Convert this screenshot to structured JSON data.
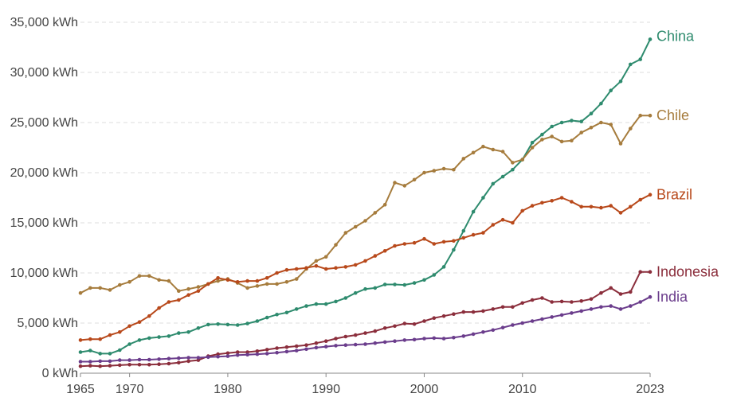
{
  "chart_data": {
    "type": "line",
    "title": "",
    "xlabel": "",
    "ylabel": "",
    "xlim": [
      1965,
      2023
    ],
    "ylim": [
      0,
      35000
    ],
    "grid": true,
    "y_ticks": [
      0,
      5000,
      10000,
      15000,
      20000,
      25000,
      30000,
      35000
    ],
    "y_tick_labels": [
      "0 kWh",
      "5,000 kWh",
      "10,000 kWh",
      "15,000 kWh",
      "20,000 kWh",
      "25,000 kWh",
      "30,000 kWh",
      "35,000 kWh"
    ],
    "x_ticks": [
      1965,
      1970,
      1980,
      1990,
      2000,
      2010,
      2023
    ],
    "x_tick_labels": [
      "1965",
      "1970",
      "1980",
      "1990",
      "2000",
      "2010",
      "2023"
    ],
    "x": [
      1965,
      1966,
      1967,
      1968,
      1969,
      1970,
      1971,
      1972,
      1973,
      1974,
      1975,
      1976,
      1977,
      1978,
      1979,
      1980,
      1981,
      1982,
      1983,
      1984,
      1985,
      1986,
      1987,
      1988,
      1989,
      1990,
      1991,
      1992,
      1993,
      1994,
      1995,
      1996,
      1997,
      1998,
      1999,
      2000,
      2001,
      2002,
      2003,
      2004,
      2005,
      2006,
      2007,
      2008,
      2009,
      2010,
      2011,
      2012,
      2013,
      2014,
      2015,
      2016,
      2017,
      2018,
      2019,
      2020,
      2021,
      2022,
      2023
    ],
    "series": [
      {
        "name": "China",
        "color": "#2e8b6e",
        "values": [
          2100,
          2250,
          1950,
          1950,
          2300,
          2900,
          3300,
          3500,
          3600,
          3700,
          4000,
          4100,
          4500,
          4850,
          4900,
          4850,
          4800,
          4950,
          5200,
          5550,
          5850,
          6050,
          6400,
          6700,
          6900,
          6900,
          7150,
          7500,
          8000,
          8400,
          8500,
          8850,
          8850,
          8800,
          9000,
          9300,
          9800,
          10600,
          12300,
          14200,
          16100,
          17500,
          18900,
          19600,
          20300,
          21300,
          23000,
          23800,
          24600,
          25000,
          25200,
          25100,
          25900,
          26900,
          28200,
          29100,
          30800,
          31300,
          33300
        ]
      },
      {
        "name": "Chile",
        "color": "#a67c3d",
        "values": [
          8000,
          8500,
          8500,
          8300,
          8800,
          9100,
          9700,
          9700,
          9300,
          9200,
          8200,
          8400,
          8600,
          8900,
          9200,
          9400,
          9000,
          8500,
          8700,
          8900,
          8900,
          9100,
          9400,
          10400,
          11200,
          11600,
          12800,
          14000,
          14600,
          15200,
          16000,
          16800,
          19000,
          18700,
          19300,
          20000,
          20200,
          20400,
          20300,
          21400,
          22000,
          22600,
          22300,
          22100,
          21000,
          21300,
          22500,
          23300,
          23600,
          23100,
          23200,
          24000,
          24500,
          25000,
          24800,
          22900,
          24400,
          25700,
          25700
        ]
      },
      {
        "name": "Brazil",
        "color": "#b8491b",
        "values": [
          3300,
          3400,
          3400,
          3800,
          4100,
          4700,
          5100,
          5700,
          6500,
          7100,
          7300,
          7800,
          8200,
          8900,
          9500,
          9300,
          9100,
          9200,
          9200,
          9500,
          10000,
          10300,
          10400,
          10500,
          10700,
          10400,
          10500,
          10600,
          10800,
          11200,
          11700,
          12200,
          12700,
          12900,
          13000,
          13400,
          12900,
          13100,
          13200,
          13500,
          13800,
          14000,
          14800,
          15300,
          15000,
          16200,
          16700,
          17000,
          17200,
          17500,
          17100,
          16600,
          16600,
          16500,
          16700,
          16000,
          16600,
          17300,
          17800
        ]
      },
      {
        "name": "Indonesia",
        "color": "#8b2e3c",
        "values": [
          700,
          750,
          700,
          750,
          800,
          850,
          850,
          850,
          900,
          950,
          1050,
          1200,
          1300,
          1700,
          1900,
          2000,
          2100,
          2100,
          2200,
          2350,
          2500,
          2600,
          2700,
          2800,
          3000,
          3200,
          3450,
          3650,
          3800,
          4000,
          4200,
          4500,
          4700,
          4950,
          4900,
          5200,
          5500,
          5700,
          5900,
          6100,
          6100,
          6200,
          6400,
          6600,
          6600,
          7000,
          7300,
          7500,
          7100,
          7150,
          7100,
          7200,
          7400,
          8000,
          8500,
          7900,
          8100,
          10100,
          10100
        ]
      },
      {
        "name": "India",
        "color": "#6b3d8c",
        "values": [
          1150,
          1150,
          1200,
          1200,
          1300,
          1300,
          1350,
          1350,
          1400,
          1450,
          1500,
          1550,
          1550,
          1600,
          1650,
          1700,
          1800,
          1850,
          1900,
          1950,
          2050,
          2150,
          2250,
          2400,
          2550,
          2650,
          2750,
          2800,
          2850,
          2900,
          3000,
          3100,
          3200,
          3300,
          3350,
          3450,
          3500,
          3450,
          3550,
          3700,
          3900,
          4100,
          4300,
          4550,
          4800,
          5000,
          5200,
          5400,
          5600,
          5800,
          6000,
          6200,
          6400,
          6600,
          6700,
          6400,
          6700,
          7100,
          7600
        ]
      }
    ]
  }
}
